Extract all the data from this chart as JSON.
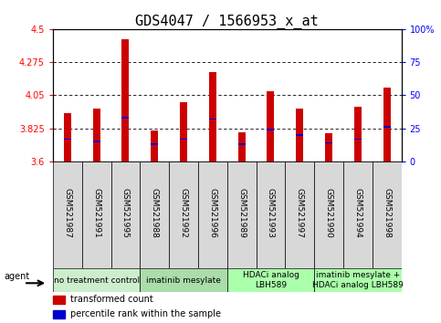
{
  "title": "GDS4047 / 1566953_x_at",
  "samples": [
    "GSM521987",
    "GSM521991",
    "GSM521995",
    "GSM521988",
    "GSM521992",
    "GSM521996",
    "GSM521989",
    "GSM521993",
    "GSM521997",
    "GSM521990",
    "GSM521994",
    "GSM521998"
  ],
  "red_values": [
    3.93,
    3.96,
    4.43,
    3.81,
    4.0,
    4.21,
    3.8,
    4.08,
    3.96,
    3.79,
    3.97,
    4.1
  ],
  "blue_values": [
    17,
    15,
    33,
    13,
    17,
    32,
    13,
    24,
    20,
    14,
    17,
    26
  ],
  "groups": [
    {
      "label": "no treatment control",
      "start": 0,
      "end": 3
    },
    {
      "label": "imatinib mesylate",
      "start": 3,
      "end": 6
    },
    {
      "label": "HDACi analog\nLBH589",
      "start": 6,
      "end": 9
    },
    {
      "label": "imatinib mesylate +\nHDACi analog LBH589",
      "start": 9,
      "end": 12
    }
  ],
  "group_colors": [
    "#cceecc",
    "#aaddaa",
    "#aaffaa",
    "#aaffaa"
  ],
  "ylim_left": [
    3.6,
    4.5
  ],
  "ylim_right": [
    0,
    100
  ],
  "yticks_left": [
    3.6,
    3.825,
    4.05,
    4.275,
    4.5
  ],
  "yticks_right": [
    0,
    25,
    50,
    75,
    100
  ],
  "ytick_labels_left": [
    "3.6",
    "3.825",
    "4.05",
    "4.275",
    "4.5"
  ],
  "ytick_labels_right": [
    "0",
    "25",
    "50",
    "75",
    "100%"
  ],
  "bar_color": "#cc0000",
  "blue_color": "#0000cc",
  "bar_width": 0.25,
  "title_fontsize": 11,
  "sample_fontsize": 6.5,
  "tick_fontsize": 7,
  "group_fontsize": 6.5,
  "legend_fontsize": 7
}
